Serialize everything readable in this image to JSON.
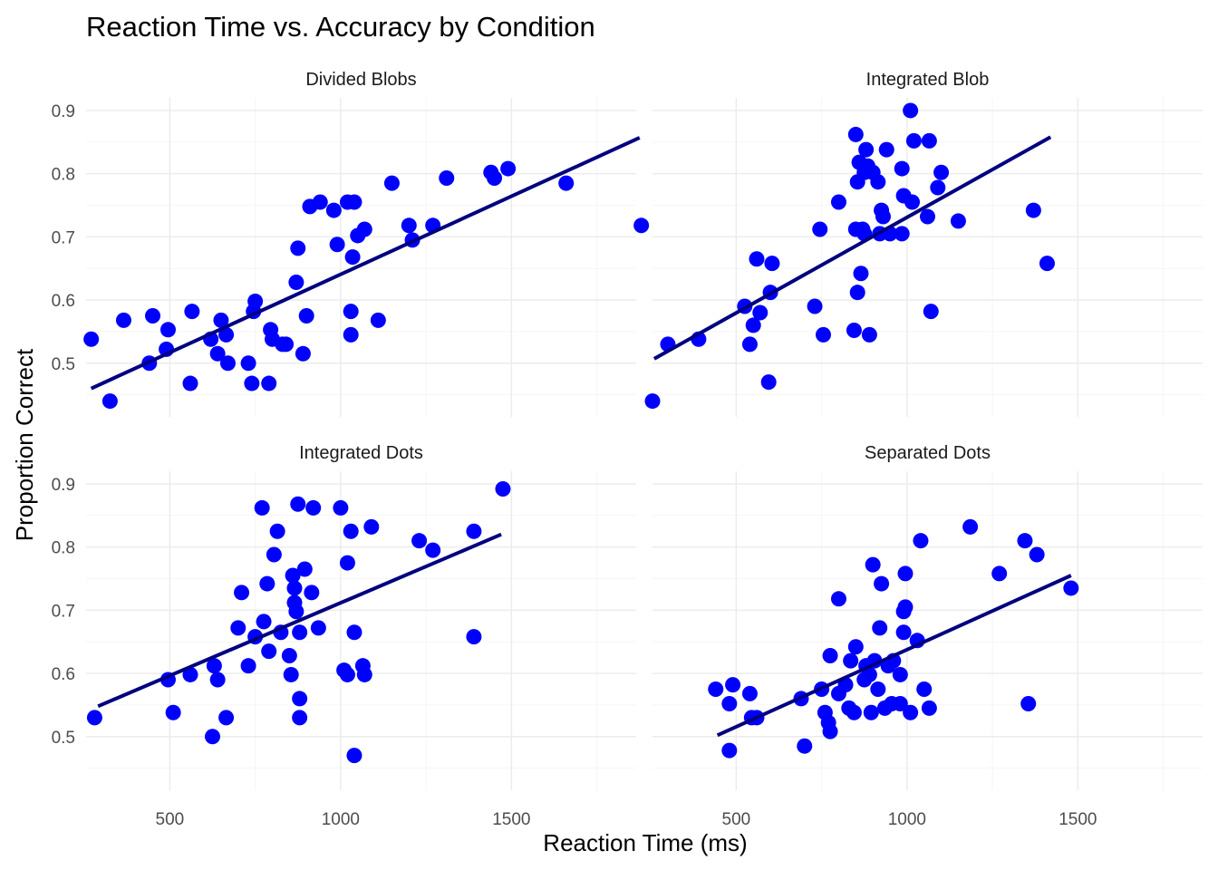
{
  "chart_data": {
    "type": "scatter",
    "title": "Reaction Time vs. Accuracy by Condition",
    "xlabel": "Reaction Time (ms)",
    "ylabel": "Proportion Correct",
    "xlim": [
      255,
      1865
    ],
    "ylim": [
      0.415,
      0.92
    ],
    "x_ticks": [
      500,
      1000,
      1500
    ],
    "y_ticks": [
      0.5,
      0.6,
      0.7,
      0.8,
      0.9
    ],
    "point_color": "#0000ff",
    "line_color": "#000080",
    "grid": true,
    "panels": [
      {
        "name": "Divided Blobs",
        "fit": {
          "x": [
            270,
            1875
          ],
          "y": [
            0.46,
            0.857
          ]
        },
        "points": [
          [
            270,
            0.538
          ],
          [
            325,
            0.44
          ],
          [
            365,
            0.568
          ],
          [
            440,
            0.5
          ],
          [
            450,
            0.575
          ],
          [
            490,
            0.522
          ],
          [
            495,
            0.553
          ],
          [
            560,
            0.468
          ],
          [
            565,
            0.582
          ],
          [
            620,
            0.538
          ],
          [
            640,
            0.515
          ],
          [
            650,
            0.568
          ],
          [
            665,
            0.545
          ],
          [
            670,
            0.5
          ],
          [
            730,
            0.5
          ],
          [
            740,
            0.468
          ],
          [
            745,
            0.582
          ],
          [
            750,
            0.598
          ],
          [
            790,
            0.468
          ],
          [
            795,
            0.553
          ],
          [
            800,
            0.538
          ],
          [
            830,
            0.53
          ],
          [
            840,
            0.53
          ],
          [
            870,
            0.628
          ],
          [
            875,
            0.682
          ],
          [
            890,
            0.515
          ],
          [
            900,
            0.575
          ],
          [
            910,
            0.748
          ],
          [
            940,
            0.755
          ],
          [
            980,
            0.742
          ],
          [
            990,
            0.688
          ],
          [
            1020,
            0.755
          ],
          [
            1030,
            0.545
          ],
          [
            1030,
            0.582
          ],
          [
            1035,
            0.668
          ],
          [
            1040,
            0.755
          ],
          [
            1050,
            0.702
          ],
          [
            1070,
            0.712
          ],
          [
            1110,
            0.568
          ],
          [
            1150,
            0.785
          ],
          [
            1200,
            0.718
          ],
          [
            1210,
            0.695
          ],
          [
            1270,
            0.718
          ],
          [
            1310,
            0.793
          ],
          [
            1440,
            0.802
          ],
          [
            1450,
            0.793
          ],
          [
            1490,
            0.808
          ],
          [
            1660,
            0.785
          ],
          [
            1880,
            0.718
          ]
        ]
      },
      {
        "name": "Integrated Blob",
        "fit": {
          "x": [
            260,
            1420
          ],
          "y": [
            0.507,
            0.858
          ]
        },
        "points": [
          [
            255,
            0.44
          ],
          [
            300,
            0.53
          ],
          [
            390,
            0.538
          ],
          [
            525,
            0.59
          ],
          [
            540,
            0.53
          ],
          [
            550,
            0.56
          ],
          [
            560,
            0.665
          ],
          [
            570,
            0.58
          ],
          [
            595,
            0.47
          ],
          [
            600,
            0.612
          ],
          [
            605,
            0.658
          ],
          [
            730,
            0.59
          ],
          [
            745,
            0.712
          ],
          [
            755,
            0.545
          ],
          [
            800,
            0.755
          ],
          [
            845,
            0.552
          ],
          [
            850,
            0.712
          ],
          [
            850,
            0.862
          ],
          [
            855,
            0.787
          ],
          [
            855,
            0.612
          ],
          [
            860,
            0.818
          ],
          [
            865,
            0.642
          ],
          [
            870,
            0.712
          ],
          [
            875,
            0.705
          ],
          [
            875,
            0.802
          ],
          [
            880,
            0.838
          ],
          [
            885,
            0.812
          ],
          [
            890,
            0.545
          ],
          [
            900,
            0.802
          ],
          [
            915,
            0.787
          ],
          [
            920,
            0.705
          ],
          [
            925,
            0.742
          ],
          [
            930,
            0.732
          ],
          [
            940,
            0.838
          ],
          [
            950,
            0.705
          ],
          [
            985,
            0.705
          ],
          [
            985,
            0.808
          ],
          [
            990,
            0.765
          ],
          [
            1010,
            0.9
          ],
          [
            1015,
            0.755
          ],
          [
            1020,
            0.852
          ],
          [
            1060,
            0.732
          ],
          [
            1065,
            0.852
          ],
          [
            1070,
            0.582
          ],
          [
            1090,
            0.778
          ],
          [
            1100,
            0.802
          ],
          [
            1150,
            0.725
          ],
          [
            1370,
            0.742
          ],
          [
            1410,
            0.658
          ]
        ]
      },
      {
        "name": "Integrated Dots",
        "fit": {
          "x": [
            290,
            1470
          ],
          "y": [
            0.548,
            0.82
          ]
        },
        "points": [
          [
            280,
            0.53
          ],
          [
            495,
            0.59
          ],
          [
            510,
            0.538
          ],
          [
            560,
            0.598
          ],
          [
            625,
            0.5
          ],
          [
            630,
            0.612
          ],
          [
            640,
            0.59
          ],
          [
            665,
            0.53
          ],
          [
            700,
            0.672
          ],
          [
            710,
            0.728
          ],
          [
            730,
            0.612
          ],
          [
            750,
            0.658
          ],
          [
            770,
            0.862
          ],
          [
            775,
            0.682
          ],
          [
            785,
            0.742
          ],
          [
            790,
            0.635
          ],
          [
            805,
            0.788
          ],
          [
            815,
            0.825
          ],
          [
            825,
            0.665
          ],
          [
            850,
            0.628
          ],
          [
            855,
            0.598
          ],
          [
            860,
            0.755
          ],
          [
            865,
            0.735
          ],
          [
            865,
            0.712
          ],
          [
            870,
            0.698
          ],
          [
            875,
            0.868
          ],
          [
            880,
            0.665
          ],
          [
            880,
            0.56
          ],
          [
            880,
            0.53
          ],
          [
            895,
            0.765
          ],
          [
            915,
            0.728
          ],
          [
            920,
            0.862
          ],
          [
            935,
            0.672
          ],
          [
            1000,
            0.862
          ],
          [
            1010,
            0.605
          ],
          [
            1020,
            0.598
          ],
          [
            1020,
            0.775
          ],
          [
            1030,
            0.825
          ],
          [
            1040,
            0.47
          ],
          [
            1040,
            0.665
          ],
          [
            1065,
            0.612
          ],
          [
            1070,
            0.598
          ],
          [
            1090,
            0.832
          ],
          [
            1230,
            0.81
          ],
          [
            1270,
            0.795
          ],
          [
            1390,
            0.825
          ],
          [
            1390,
            0.658
          ],
          [
            1475,
            0.892
          ]
        ]
      },
      {
        "name": "Separated Dots",
        "fit": {
          "x": [
            445,
            1480
          ],
          "y": [
            0.502,
            0.755
          ]
        },
        "points": [
          [
            440,
            0.575
          ],
          [
            480,
            0.552
          ],
          [
            480,
            0.478
          ],
          [
            490,
            0.582
          ],
          [
            540,
            0.568
          ],
          [
            545,
            0.53
          ],
          [
            560,
            0.53
          ],
          [
            690,
            0.56
          ],
          [
            700,
            0.485
          ],
          [
            750,
            0.575
          ],
          [
            760,
            0.538
          ],
          [
            770,
            0.522
          ],
          [
            775,
            0.508
          ],
          [
            775,
            0.628
          ],
          [
            800,
            0.568
          ],
          [
            800,
            0.718
          ],
          [
            820,
            0.582
          ],
          [
            830,
            0.545
          ],
          [
            835,
            0.62
          ],
          [
            845,
            0.538
          ],
          [
            850,
            0.642
          ],
          [
            875,
            0.59
          ],
          [
            880,
            0.612
          ],
          [
            890,
            0.598
          ],
          [
            895,
            0.538
          ],
          [
            900,
            0.772
          ],
          [
            905,
            0.62
          ],
          [
            915,
            0.575
          ],
          [
            920,
            0.672
          ],
          [
            925,
            0.742
          ],
          [
            935,
            0.545
          ],
          [
            945,
            0.612
          ],
          [
            955,
            0.552
          ],
          [
            960,
            0.62
          ],
          [
            980,
            0.552
          ],
          [
            980,
            0.598
          ],
          [
            990,
            0.665
          ],
          [
            990,
            0.698
          ],
          [
            995,
            0.705
          ],
          [
            995,
            0.758
          ],
          [
            1010,
            0.538
          ],
          [
            1030,
            0.652
          ],
          [
            1040,
            0.81
          ],
          [
            1050,
            0.575
          ],
          [
            1065,
            0.545
          ],
          [
            1185,
            0.832
          ],
          [
            1270,
            0.758
          ],
          [
            1345,
            0.81
          ],
          [
            1355,
            0.552
          ],
          [
            1380,
            0.788
          ],
          [
            1480,
            0.735
          ]
        ]
      }
    ]
  }
}
